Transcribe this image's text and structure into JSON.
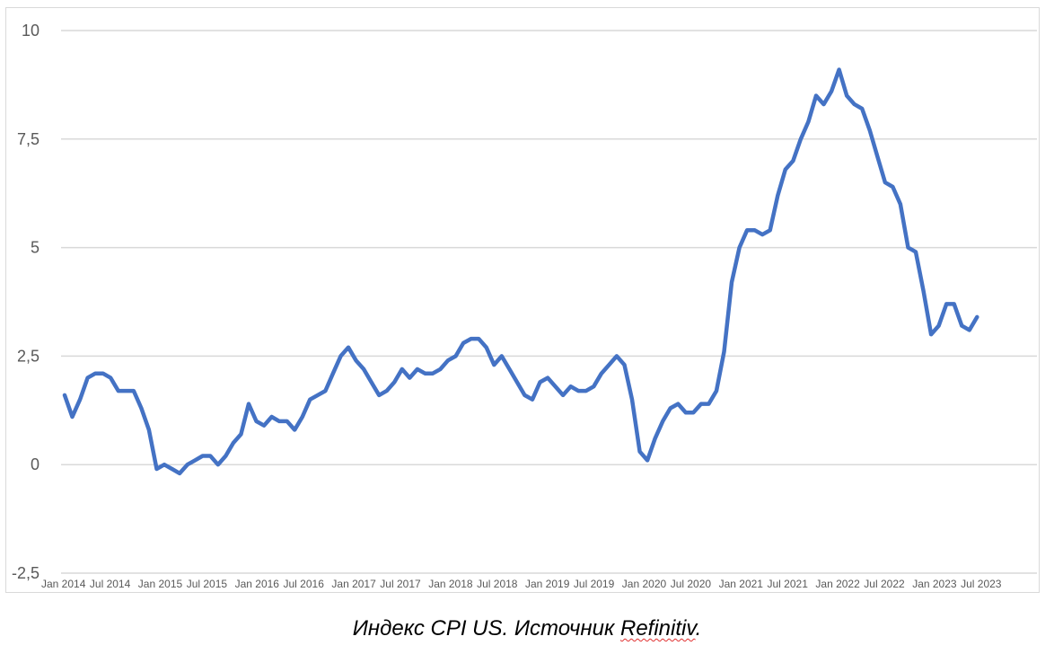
{
  "caption": {
    "prefix": "Индекс CPI US. Источник ",
    "source": "Refinitiv",
    "suffix": "."
  },
  "chart_data": {
    "type": "line",
    "title": "",
    "xlabel": "",
    "ylabel": "",
    "ylim": [
      -2.5,
      10
    ],
    "y_ticks": [
      "10",
      "7,5",
      "5",
      "2,5",
      "0",
      "-2,5"
    ],
    "y_tick_values": [
      10,
      7.5,
      5,
      2.5,
      0,
      -2.5
    ],
    "grid": true,
    "legend": "none",
    "line_color": "#4472c4",
    "x_tick_labels": [
      "Jan 2014",
      "Jul 2014",
      "Jan 2015",
      "Jul 2015",
      "Jan 2016",
      "Jul 2016",
      "Jan 2017",
      "Jul 2017",
      "Jan 2018",
      "Jul 2018",
      "Jan 2019",
      "Jul 2019",
      "Jan 2020",
      "Jul 2020",
      "Jan 2021",
      "Jul 2021",
      "Jan 2022",
      "Jul 2022",
      "Jan 2023",
      "Jul 2023"
    ],
    "x_start": "2014-01",
    "x_end": "2023-10",
    "series": [
      {
        "values": [
          1.6,
          1.1,
          1.5,
          2.0,
          2.1,
          2.1,
          2.0,
          1.7,
          1.7,
          1.7,
          1.3,
          0.8,
          -0.1,
          0.0,
          -0.1,
          -0.2,
          0.0,
          0.1,
          0.2,
          0.2,
          0.0,
          0.2,
          0.5,
          0.7,
          1.4,
          1.0,
          0.9,
          1.1,
          1.0,
          1.0,
          0.8,
          1.1,
          1.5,
          1.6,
          1.7,
          2.1,
          2.5,
          2.7,
          2.4,
          2.2,
          1.9,
          1.6,
          1.7,
          1.9,
          2.2,
          2.0,
          2.2,
          2.1,
          2.1,
          2.2,
          2.4,
          2.5,
          2.8,
          2.9,
          2.9,
          2.7,
          2.3,
          2.5,
          2.2,
          1.9,
          1.6,
          1.5,
          1.9,
          2.0,
          1.8,
          1.6,
          1.8,
          1.7,
          1.7,
          1.8,
          2.1,
          2.3,
          2.5,
          2.3,
          1.5,
          0.3,
          0.1,
          0.6,
          1.0,
          1.3,
          1.4,
          1.2,
          1.2,
          1.4,
          1.4,
          1.7,
          2.6,
          4.2,
          5.0,
          5.4,
          5.4,
          5.3,
          5.4,
          6.2,
          6.8,
          7.0,
          7.5,
          7.9,
          8.5,
          8.3,
          8.6,
          9.1,
          8.5,
          8.3,
          8.2,
          7.7,
          7.1,
          6.5,
          6.4,
          6.0,
          5.0,
          4.9,
          4.0,
          3.0,
          3.2,
          3.7,
          3.7,
          3.2,
          3.1,
          3.4
        ]
      }
    ]
  }
}
